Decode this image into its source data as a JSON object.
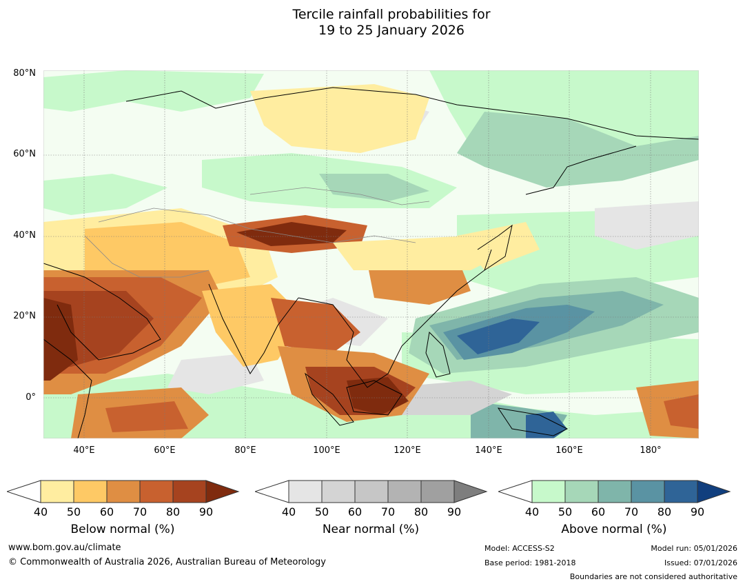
{
  "title": {
    "line1": "Tercile rainfall probabilities for",
    "line2": "19 to 25 January 2026"
  },
  "map": {
    "lat_labels": [
      "80°N",
      "60°N",
      "40°N",
      "20°N",
      "0°"
    ],
    "lon_labels": [
      "40°E",
      "60°E",
      "80°E",
      "100°E",
      "120°E",
      "140°E",
      "160°E",
      "180°"
    ],
    "lon_range": [
      30,
      192
    ],
    "lat_range": [
      -10,
      80
    ]
  },
  "legend": {
    "below": {
      "title": "Below normal (%)",
      "ticks": [
        "40",
        "50",
        "60",
        "70",
        "80",
        "90"
      ],
      "colors": [
        "#ffeda0",
        "#fec965",
        "#df8e43",
        "#c8612f",
        "#a6431f",
        "#7f2b0e"
      ]
    },
    "near": {
      "title": "Near normal (%)",
      "ticks": [
        "40",
        "50",
        "60",
        "70",
        "80",
        "90"
      ],
      "colors": [
        "#e5e5e5",
        "#d4d4d4",
        "#c6c6c6",
        "#b3b3b3",
        "#a0a0a0",
        "#7e7e7e"
      ]
    },
    "above": {
      "title": "Above normal (%)",
      "ticks": [
        "40",
        "50",
        "60",
        "70",
        "80",
        "90"
      ],
      "colors": [
        "#c7f9cb",
        "#a6d7b8",
        "#7fb5aa",
        "#5a93a3",
        "#2f6497",
        "#113f7e"
      ]
    }
  },
  "footer": {
    "website": "www.bom.gov.au/climate",
    "copyright": "© Commonwealth of Australia 2026, Australian Bureau of Meteorology",
    "model": "Model: ACCESS-S2",
    "base_period": "Base period: 1981-2018",
    "model_run": "Model run: 05/01/2026",
    "issued": "Issued: 07/01/2026",
    "disclaimer": "Boundaries are not considered authoritative"
  }
}
